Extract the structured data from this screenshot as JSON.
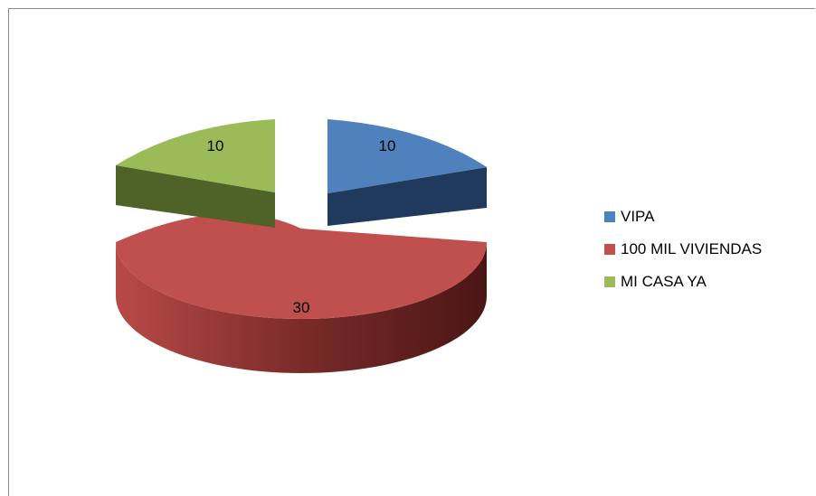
{
  "chart_data": {
    "type": "pie",
    "title": "",
    "categories": [
      "VIPA",
      "100 MIL VIVIENDAS",
      "MI CASA YA"
    ],
    "values": [
      10,
      30,
      10
    ],
    "colors": [
      "#4f81bd",
      "#c0504d",
      "#9bbb59"
    ],
    "data_labels": [
      "10",
      "30",
      "10"
    ],
    "exploded": [
      true,
      false,
      true
    ],
    "three_d": true,
    "legend_position": "right"
  }
}
